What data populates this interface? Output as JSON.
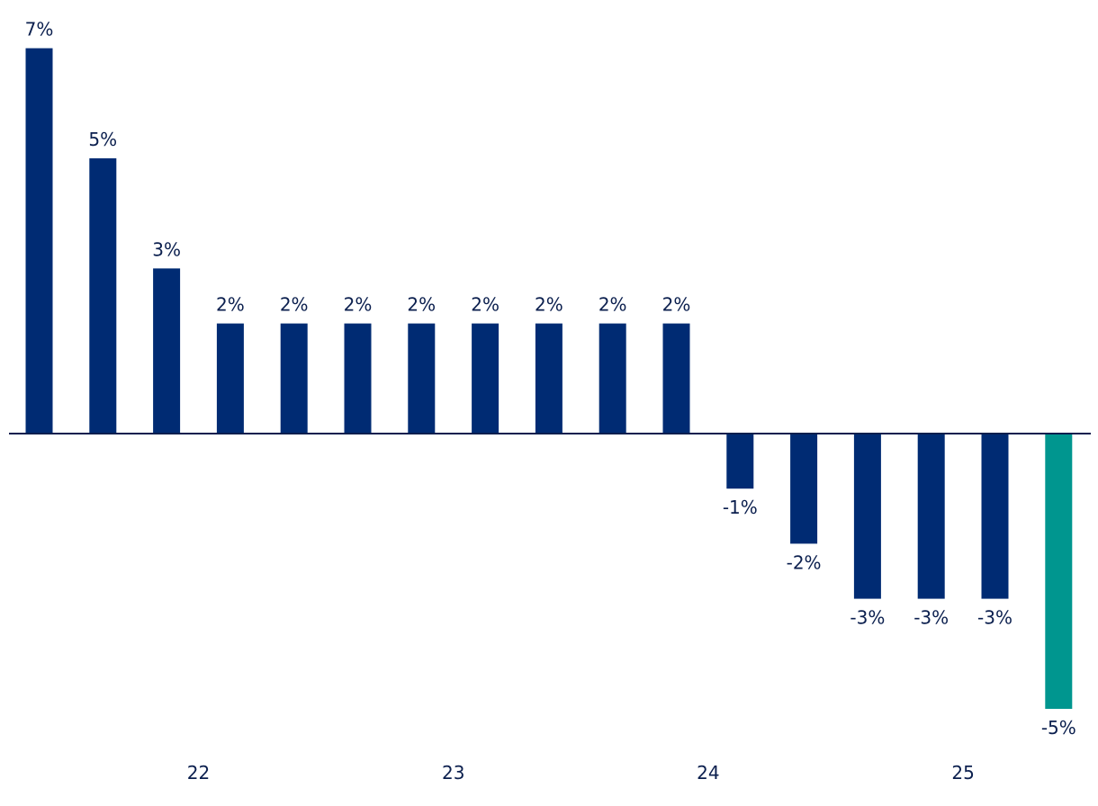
{
  "chart_data": {
    "type": "bar",
    "title": "",
    "xlabel": "",
    "ylabel": "",
    "ylim": [
      -5.8,
      7.6
    ],
    "grid": false,
    "values": [
      7,
      5,
      3,
      2,
      2,
      2,
      2,
      2,
      2,
      2,
      2,
      -1,
      -2,
      -3,
      -3,
      -3,
      -5
    ],
    "data_labels": [
      "7%",
      "5%",
      "3%",
      "2%",
      "2%",
      "2%",
      "2%",
      "2%",
      "2%",
      "2%",
      "2%",
      "-1%",
      "-2%",
      "-3%",
      "-3%",
      "-3%",
      "-5%"
    ],
    "highlight_index": 16,
    "x_ticks": [
      {
        "label": "22",
        "after_bar": 3
      },
      {
        "label": "23",
        "after_bar": 7
      },
      {
        "label": "24",
        "after_bar": 11
      },
      {
        "label": "25",
        "after_bar": 15
      }
    ]
  },
  "colors": {
    "bar": "#002B73",
    "highlight": "#00968F",
    "text": "#0B1F4E",
    "axis": "#0B1F4E"
  }
}
